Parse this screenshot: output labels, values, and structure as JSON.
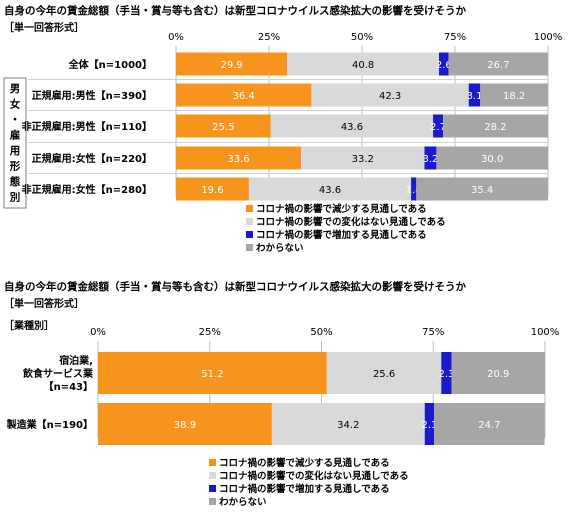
{
  "chart_data": [
    {
      "type": "bar",
      "stacked": true,
      "orientation": "horizontal",
      "title": "自身の今年の賃金総額（手当・賞与等も含む）は新型コロナウイルス感染拡大の影響を受けそうか",
      "subtitle": "［単一回答形式］",
      "group_label": "男女・雇用形態別",
      "xlim": [
        0,
        100
      ],
      "ticks": [
        "0%",
        "25%",
        "50%",
        "75%",
        "100%"
      ],
      "categories": [
        "全体【n=1000】",
        "正規雇用:男性【n=390】",
        "非正規雇用:男性【n=110】",
        "正規雇用:女性【n=220】",
        "非正規雇用:女性【n=280】"
      ],
      "series": [
        {
          "name": "コロナ禍の影響で減少する見通しである",
          "color": "#f7941d",
          "values": [
            29.9,
            36.4,
            25.5,
            33.6,
            19.6
          ]
        },
        {
          "name": "コロナ禍の影響での変化はない見通しである",
          "color": "#d9d9d9",
          "values": [
            40.8,
            42.3,
            43.6,
            33.2,
            43.6
          ]
        },
        {
          "name": "コロナ禍の影響で増加する見通しである",
          "color": "#1a1acc",
          "values": [
            2.6,
            3.1,
            2.7,
            3.2,
            1.4
          ]
        },
        {
          "name": "わからない",
          "color": "#a6a6a6",
          "values": [
            26.7,
            18.2,
            28.2,
            30.0,
            35.4
          ]
        }
      ],
      "legend_position": "bottom-center",
      "grid": true
    },
    {
      "type": "bar",
      "stacked": true,
      "orientation": "horizontal",
      "title": "自身の今年の賃金総額（手当・賞与等も含む）は新型コロナウイルス感染拡大の影響を受けそうか",
      "subtitle": "［単一回答形式］",
      "group_label": "［業種別］",
      "xlim": [
        0,
        100
      ],
      "ticks": [
        "0%",
        "25%",
        "50%",
        "75%",
        "100%"
      ],
      "categories": [
        "宿泊業,\n飲食サービス業\n【n=43】",
        "製造業【n=190】"
      ],
      "series": [
        {
          "name": "コロナ禍の影響で減少する見通しである",
          "color": "#f7941d",
          "values": [
            51.2,
            38.9
          ]
        },
        {
          "name": "コロナ禍の影響での変化はない見通しである",
          "color": "#d9d9d9",
          "values": [
            25.6,
            34.2
          ]
        },
        {
          "name": "コロナ禍の影響で増加する見通しである",
          "color": "#1a1acc",
          "values": [
            2.3,
            2.1
          ]
        },
        {
          "name": "わからない",
          "color": "#a6a6a6",
          "values": [
            20.9,
            24.7
          ]
        }
      ],
      "legend_position": "bottom-center",
      "grid": true
    }
  ]
}
